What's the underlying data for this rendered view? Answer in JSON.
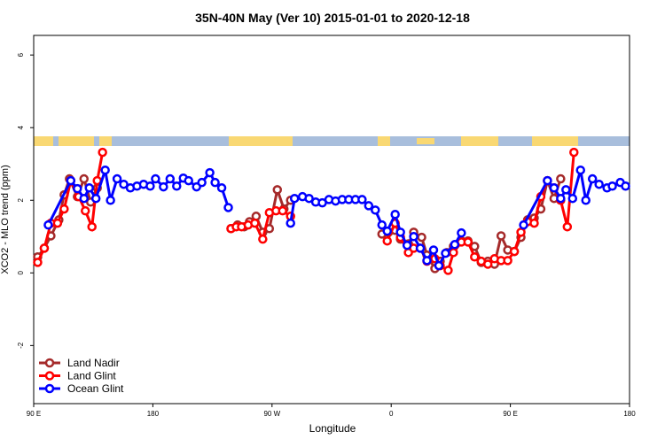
{
  "chart_data": {
    "type": "line",
    "title": "35N-40N May (Ver 10)   2015-01-01 to 2020-12-18",
    "xlabel": "Longitude",
    "ylabel": "XCO2 - MLO trend (ppm)",
    "xlim": [
      90,
      540
    ],
    "ylim": [
      -3.6,
      6.54
    ],
    "xticks": [
      {
        "value": 90,
        "label": "90 E"
      },
      180,
      {
        "value": 270,
        "label": "90 W"
      },
      {
        "value": 360,
        "label": "0"
      },
      {
        "value": 450,
        "label": "90 E"
      },
      {
        "value": 540,
        "label": "180"
      }
    ],
    "yticks": [
      -2,
      0,
      2,
      4,
      6
    ],
    "legend": "bottomleft",
    "series": [
      {
        "name": "Land Nadir",
        "color": "#a52a2a",
        "x": [
          93,
          98,
          103,
          109,
          113,
          117,
          123,
          128,
          133,
          138,
          200,
          239,
          244,
          249,
          253,
          258,
          263,
          268,
          274,
          279,
          284,
          320,
          353,
          358,
          363,
          367,
          373,
          377,
          383,
          387,
          393,
          397,
          402,
          407,
          413,
          418,
          423,
          428,
          433,
          438,
          443,
          448,
          453,
          458,
          463,
          468,
          473,
          478,
          483,
          488
        ],
        "values": [
          0.44,
          0.68,
          1.02,
          1.46,
          2.15,
          2.59,
          2.1,
          2.59,
          1.95,
          2.34,
          null,
          1.22,
          1.32,
          1.27,
          1.41,
          1.56,
          1.12,
          1.22,
          2.29,
          1.76,
          2.0,
          null,
          1.07,
          1.12,
          1.17,
          0.93,
          0.8,
          1.12,
          0.98,
          0.49,
          0.12,
          0.32,
          0.56,
          0.73,
          0.88,
          0.88,
          0.73,
          0.29,
          0.32,
          0.24,
          1.02,
          0.63,
          0.59,
          0.98,
          1.46,
          1.51,
          1.76,
          2.54,
          2.05,
          2.59
        ]
      },
      {
        "name": "Land Glint",
        "color": "#ff0000",
        "x": [
          93,
          98,
          103,
          108,
          113,
          118,
          124,
          129,
          134,
          138,
          142,
          200,
          239,
          243,
          247,
          252,
          257,
          263,
          268,
          273,
          278,
          284,
          320,
          357,
          363,
          367,
          373,
          377,
          382,
          387,
          393,
          397,
          403,
          407,
          413,
          418,
          423,
          428,
          433,
          438,
          443,
          448,
          453,
          458,
          463,
          468,
          473,
          478,
          483,
          488,
          493,
          498
        ],
        "values": [
          0.29,
          0.68,
          1.37,
          1.37,
          1.76,
          2.54,
          2.1,
          1.71,
          1.27,
          2.54,
          3.32,
          null,
          1.22,
          1.27,
          1.27,
          1.32,
          1.37,
          0.93,
          1.66,
          1.71,
          1.71,
          1.56,
          null,
          0.88,
          1.37,
          0.98,
          0.56,
          0.68,
          0.68,
          0.32,
          0.39,
          0.2,
          0.07,
          0.56,
          0.85,
          0.85,
          0.44,
          0.32,
          0.24,
          0.39,
          0.34,
          0.34,
          0.59,
          1.12,
          1.41,
          1.37,
          2.1,
          2.54,
          2.34,
          2.0,
          1.27,
          3.32
        ]
      },
      {
        "name": "Ocean Glint",
        "color": "#0000ff",
        "x": [
          101,
          118,
          123,
          128,
          132,
          137,
          144,
          148,
          153,
          158,
          163,
          168,
          173,
          178,
          182,
          188,
          193,
          198,
          203,
          207,
          213,
          217,
          223,
          227,
          232,
          237,
          260,
          284,
          287,
          293,
          298,
          303,
          308,
          313,
          318,
          323,
          328,
          333,
          338,
          343,
          348,
          353,
          357,
          363,
          367,
          372,
          377,
          382,
          387,
          392,
          396,
          401,
          408,
          413,
          440,
          460,
          478,
          483,
          488,
          492,
          497,
          503,
          507,
          512,
          517,
          523,
          527,
          533,
          537
        ],
        "values": [
          1.32,
          2.54,
          2.32,
          2.05,
          2.34,
          2.05,
          2.83,
          2.0,
          2.59,
          2.44,
          2.34,
          2.39,
          2.44,
          2.39,
          2.59,
          2.37,
          2.59,
          2.39,
          2.61,
          2.54,
          2.37,
          2.49,
          2.76,
          2.49,
          2.34,
          1.8,
          null,
          1.37,
          2.05,
          2.1,
          2.05,
          1.95,
          1.93,
          2.02,
          1.98,
          2.02,
          2.02,
          2.02,
          2.02,
          1.85,
          1.73,
          1.32,
          1.15,
          1.61,
          1.12,
          0.76,
          1.0,
          0.68,
          0.34,
          0.63,
          0.2,
          0.54,
          0.78,
          1.1,
          null,
          1.32,
          2.54,
          2.34,
          2.05,
          2.29,
          2.05,
          2.83,
          2.0,
          2.59,
          2.44,
          2.34,
          2.39,
          2.49,
          2.39
        ]
      }
    ]
  }
}
